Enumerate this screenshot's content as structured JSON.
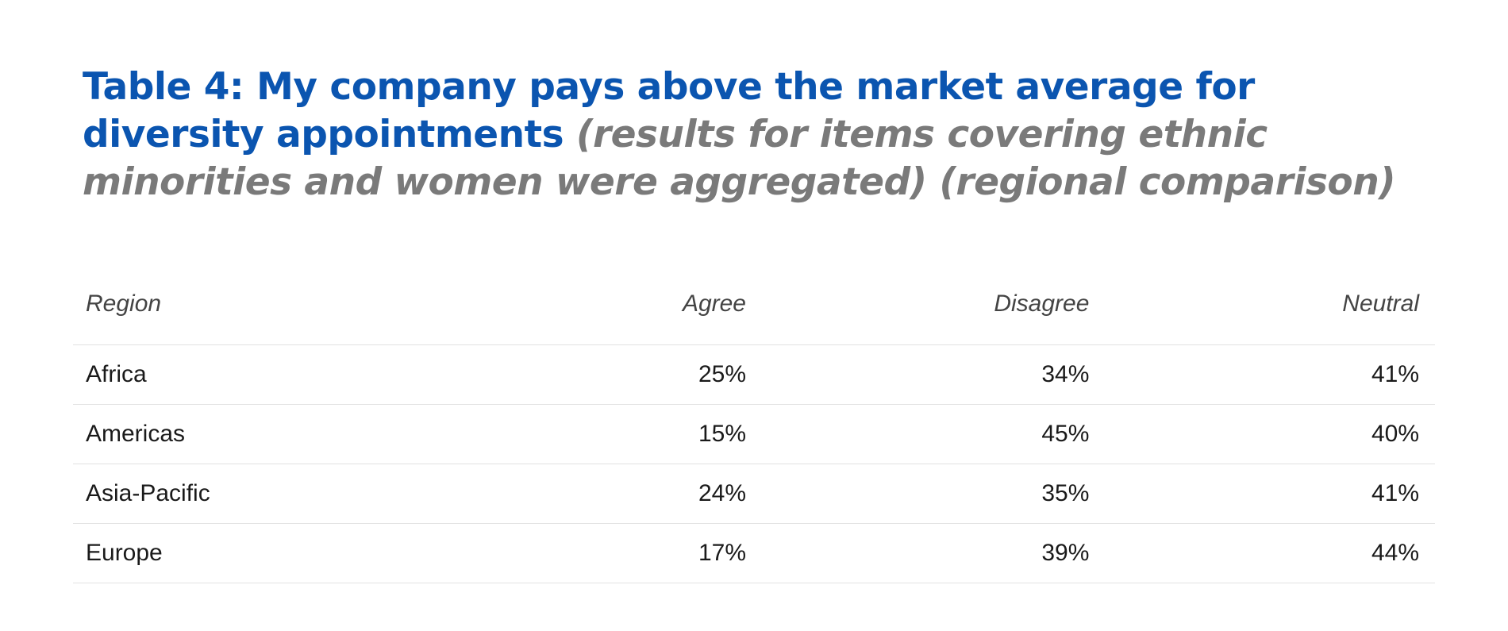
{
  "title": {
    "main": "Table 4: My company pays above the market average for diversity appointments",
    "sub": "(results for items covering ethnic minorities and women were aggregated) (regional comparison)"
  },
  "table": {
    "columns": [
      "Region",
      "Agree",
      "Disagree",
      "Neutral"
    ],
    "rows": [
      [
        "Africa",
        "25%",
        "34%",
        "41%"
      ],
      [
        "Americas",
        "15%",
        "45%",
        "40%"
      ],
      [
        "Asia-Pacific",
        "24%",
        "35%",
        "41%"
      ],
      [
        "Europe",
        "17%",
        "39%",
        "44%"
      ]
    ]
  },
  "colors": {
    "title_main": "#0b55b0",
    "title_sub": "#7a7a7a",
    "header_text": "#444444",
    "cell_text": "#1a1a1a",
    "rule": "#e2e2e2"
  }
}
